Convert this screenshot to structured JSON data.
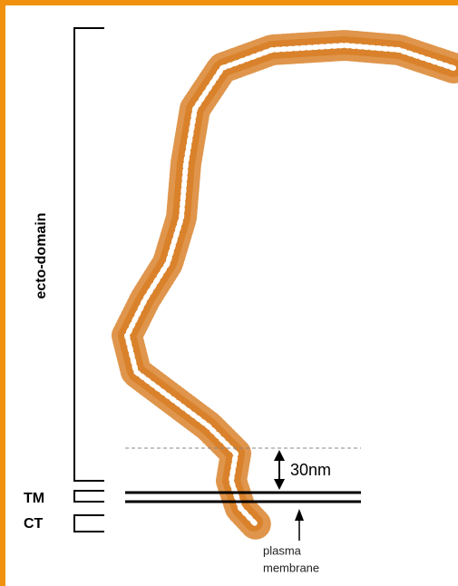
{
  "labels": {
    "ecto_domain": "ecto-domain",
    "tm": "TM",
    "ct": "CT",
    "distance": "30nm",
    "membrane": [
      "plasma",
      "membrane"
    ]
  }
}
